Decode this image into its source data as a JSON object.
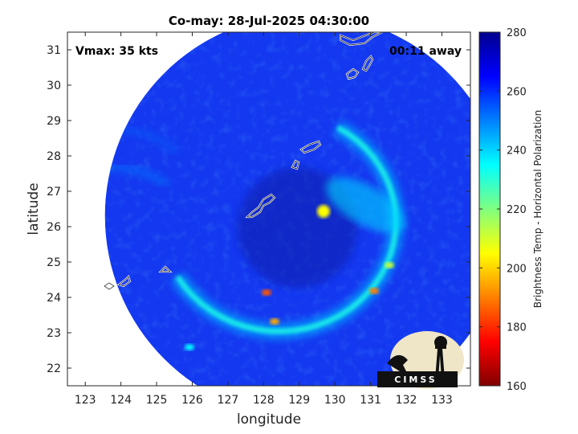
{
  "figure": {
    "title": "Co-may: 28-Jul-2025 04:30:00",
    "vmax_text": "Vmax: 35 kts",
    "time_away_text": "00:11 away"
  },
  "map": {
    "xlabel": "longitude",
    "ylabel": "latitude",
    "xlim": [
      122.5,
      133.8
    ],
    "ylim": [
      21.5,
      31.5
    ],
    "x_ticks": [
      123,
      124,
      125,
      126,
      127,
      128,
      129,
      130,
      131,
      132,
      133
    ],
    "y_ticks": [
      22,
      23,
      24,
      25,
      26,
      27,
      28,
      29,
      30,
      31
    ],
    "swath_center": [
      129.2,
      26.3
    ],
    "storm_center": [
      128.5,
      26.2
    ],
    "coastline_color": "#ffffff"
  },
  "colorbar": {
    "label": "Brightness Temp - Horizontal Polarization",
    "range": [
      160,
      280
    ],
    "ticks": [
      160,
      180,
      200,
      220,
      240,
      260,
      280
    ],
    "colormap": "jet"
  },
  "logo": {
    "text": "CIMSS"
  }
}
